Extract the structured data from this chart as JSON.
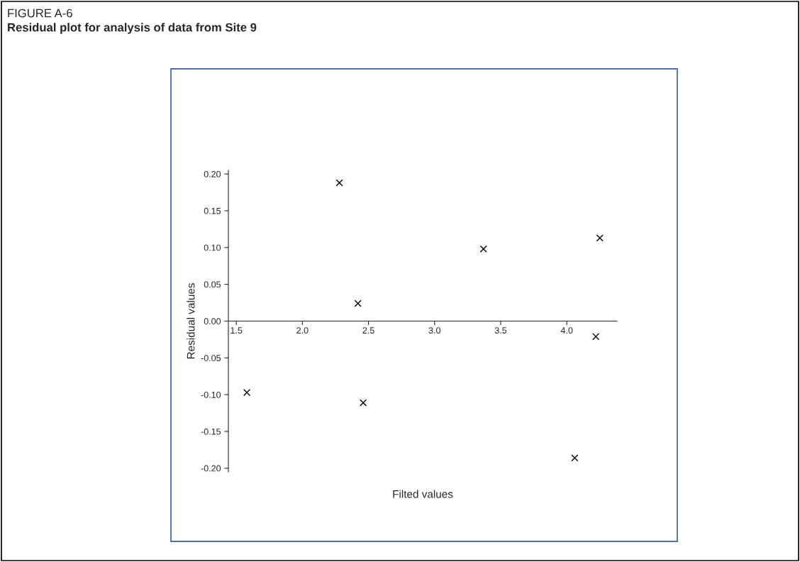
{
  "chart_data": {
    "type": "scatter",
    "title": "FIGURE A-6",
    "subtitle": "Residual plot for analysis of data from Site 9",
    "xlabel": "Filted values",
    "ylabel": "Residual values",
    "x": [
      1.58,
      2.28,
      2.42,
      2.46,
      3.37,
      4.06,
      4.22,
      4.25
    ],
    "values": [
      -0.097,
      0.188,
      0.024,
      -0.111,
      0.098,
      -0.186,
      -0.021,
      0.113
    ],
    "color": "#000000",
    "marker": "cross",
    "xlim": [
      1.44,
      4.38
    ],
    "xticks": [
      {
        "value": 1.5,
        "label": "1.5"
      },
      {
        "value": 2.0,
        "label": "2.0"
      },
      {
        "value": 2.5,
        "label": "2.5"
      },
      {
        "value": 3.0,
        "label": "3.0"
      },
      {
        "value": 3.5,
        "label": "3.5"
      },
      {
        "value": 4.0,
        "label": "4.0"
      }
    ],
    "ylim": [
      -0.205,
      0.205
    ],
    "yticks": [
      {
        "value": -0.2,
        "label": "-0.20"
      },
      {
        "value": -0.15,
        "label": "-0.15"
      },
      {
        "value": -0.1,
        "label": "-0.10"
      },
      {
        "value": -0.05,
        "label": "-0.05"
      },
      {
        "value": 0,
        "label": "0.00"
      },
      {
        "value": 0.05,
        "label": "0.05"
      },
      {
        "value": 0.1,
        "label": "0.10"
      },
      {
        "value": 0.15,
        "label": "0.15"
      },
      {
        "value": 0.2,
        "label": "0.20"
      }
    ],
    "grid": false
  }
}
